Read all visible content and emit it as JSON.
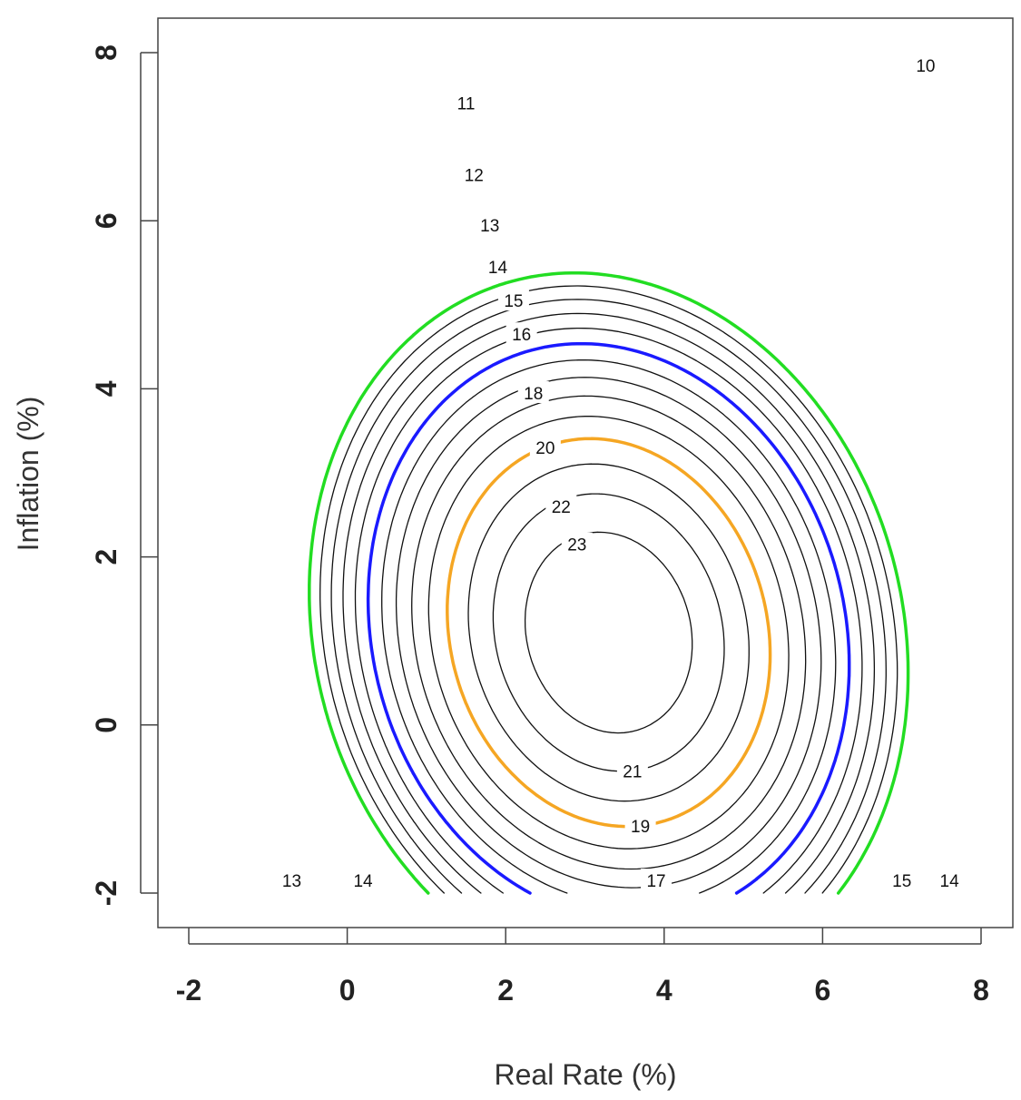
{
  "chart_data": {
    "type": "contour",
    "title": "",
    "xlabel": "Real Rate (%)",
    "ylabel": "Inflation (%)",
    "xlim": [
      -2,
      8
    ],
    "ylim": [
      -2,
      8
    ],
    "x_ticks": [
      "-2",
      "0",
      "2",
      "4",
      "6",
      "8"
    ],
    "y_ticks": [
      "-2",
      "0",
      "2",
      "4",
      "6",
      "8"
    ],
    "grid": false,
    "legend": "none",
    "surface": {
      "peak_x": 3.3,
      "peak_y": 1.1,
      "peak_value": 24.1,
      "cross_term": 0.2,
      "x_curvature": 1.0,
      "y_curvature": 0.78
    },
    "highlight_colors": {
      "10": "#22dd22",
      "15": "#1a1aff",
      "20": "#f5a623"
    },
    "default_line_color": "#111111",
    "contour_levels": [
      "10",
      "11",
      "12",
      "13",
      "14",
      "15",
      "16",
      "17",
      "18",
      "19",
      "20",
      "21",
      "22",
      "23"
    ],
    "contour_labels": [
      {
        "text": "11",
        "x": 1.5,
        "y": 7.4,
        "color": "#111111"
      },
      {
        "text": "12",
        "x": 1.6,
        "y": 6.55,
        "color": "#111111"
      },
      {
        "text": "13",
        "x": 1.8,
        "y": 5.95,
        "color": "#111111"
      },
      {
        "text": "14",
        "x": 1.9,
        "y": 5.45,
        "color": "#111111"
      },
      {
        "text": "15",
        "x": 2.1,
        "y": 5.05,
        "color": "#1a1aff"
      },
      {
        "text": "16",
        "x": 2.2,
        "y": 4.65,
        "color": "#111111"
      },
      {
        "text": "18",
        "x": 2.35,
        "y": 3.95,
        "color": "#111111"
      },
      {
        "text": "20",
        "x": 2.5,
        "y": 3.3,
        "color": "#f5a623"
      },
      {
        "text": "22",
        "x": 2.7,
        "y": 2.6,
        "color": "#111111"
      },
      {
        "text": "23",
        "x": 2.9,
        "y": 2.15,
        "color": "#111111"
      },
      {
        "text": "21",
        "x": 3.6,
        "y": -0.55,
        "color": "#111111"
      },
      {
        "text": "19",
        "x": 3.7,
        "y": -1.2,
        "color": "#111111"
      },
      {
        "text": "17",
        "x": 3.9,
        "y": -1.85,
        "color": "#111111"
      },
      {
        "text": "13",
        "x": -0.7,
        "y": -1.85,
        "color": "#111111"
      },
      {
        "text": "14",
        "x": 0.2,
        "y": -1.85,
        "color": "#111111"
      },
      {
        "text": "15",
        "x": 7.0,
        "y": -1.85,
        "color": "#1a1aff"
      },
      {
        "text": "14",
        "x": 7.6,
        "y": -1.85,
        "color": "#111111"
      },
      {
        "text": "10",
        "x": 7.3,
        "y": 7.85,
        "color": "#22dd22"
      }
    ]
  }
}
